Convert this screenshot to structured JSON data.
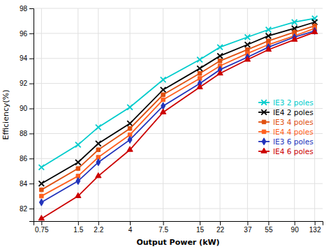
{
  "chart_data": {
    "type": "line",
    "xlabel": "Output Power (kW)",
    "ylabel": "Efficiency(%)",
    "x": [
      0.75,
      1.5,
      2.2,
      4,
      7.5,
      15,
      22,
      37,
      55,
      90,
      132
    ],
    "series": [
      {
        "name": "IE3 2 poles",
        "color": "#00CCCC",
        "marker": "x",
        "values": [
          85.3,
          87.1,
          88.5,
          90.1,
          92.3,
          93.9,
          94.9,
          95.7,
          96.3,
          96.9,
          97.2
        ]
      },
      {
        "name": "IE4 2 poles",
        "color": "#000000",
        "marker": "x",
        "values": [
          84.0,
          85.7,
          87.2,
          88.8,
          91.5,
          93.2,
          94.2,
          95.1,
          95.8,
          96.4,
          96.9
        ]
      },
      {
        "name": "IE3 4 poles",
        "color": "#E05010",
        "marker": "square",
        "values": [
          83.5,
          85.2,
          86.7,
          88.4,
          91.1,
          92.8,
          93.8,
          94.7,
          95.4,
          96.1,
          96.6
        ]
      },
      {
        "name": "IE4 4 poles",
        "color": "#FF6020",
        "marker": "square",
        "values": [
          83.0,
          84.6,
          86.1,
          87.9,
          90.7,
          92.4,
          93.4,
          94.4,
          95.1,
          95.8,
          96.4
        ]
      },
      {
        "name": "IE3 6 poles",
        "color": "#2233BB",
        "marker": "diamond",
        "values": [
          82.5,
          84.2,
          85.7,
          87.5,
          90.2,
          92.0,
          93.1,
          94.1,
          94.9,
          95.7,
          96.2
        ]
      },
      {
        "name": "IE4 6 poles",
        "color": "#CC0000",
        "marker": "triangle",
        "values": [
          81.2,
          83.0,
          84.6,
          86.7,
          89.7,
          91.7,
          92.8,
          93.9,
          94.7,
          95.5,
          96.1
        ]
      }
    ],
    "log": "x",
    "xlim": [
      0.64553,
      153.362
    ],
    "xticks": [
      0.75,
      1.5,
      2.2,
      4,
      7.5,
      15,
      22,
      37,
      55,
      90,
      132
    ],
    "ylim": [
      81,
      98
    ],
    "yticks": [
      82,
      84,
      86,
      88,
      90,
      92,
      94,
      96,
      98
    ],
    "grid": true,
    "legend": "right"
  }
}
